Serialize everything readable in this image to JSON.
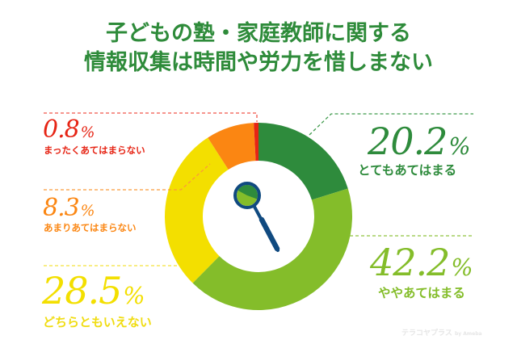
{
  "title": {
    "line1": "子どもの塾・家庭教師に関する",
    "line2": "情報収集は時間や労力を惜しまない"
  },
  "chart_data": {
    "type": "pie",
    "variant": "donut",
    "title": "子どもの塾・家庭教師に関する情報収集は時間や労力を惜しまない",
    "start_angle": "12 o'clock, clockwise",
    "categories": [
      "とてもあてはまる",
      "ややあてはまる",
      "どちらともいえない",
      "あまりあてはまらない",
      "まったくあてはまらない"
    ],
    "values": [
      20.2,
      42.2,
      28.5,
      8.3,
      0.8
    ],
    "unit": "%",
    "colors": [
      "#2e8b3c",
      "#84bd2a",
      "#f3df00",
      "#fb8612",
      "#e62414"
    ],
    "center_icon": "magnifying-glass"
  },
  "labels": {
    "very_true": {
      "value": "20.2",
      "unit": "%",
      "text": "とてもあてはまる",
      "color": "#2e8b3c"
    },
    "somewhat": {
      "value": "42.2",
      "unit": "%",
      "text": "ややあてはまる",
      "color": "#84bd2a"
    },
    "neutral": {
      "value": "28.5",
      "unit": "%",
      "text": "どちらともいえない",
      "color": "#f3df00"
    },
    "not_really": {
      "value": "8.3",
      "unit": "%",
      "text": "あまりあてはまらない",
      "color": "#fb8612"
    },
    "not_at_all": {
      "value": "0.8",
      "unit": "%",
      "text": "まったくあてはまらない",
      "color": "#e62414"
    }
  },
  "watermark": {
    "brand": "テラコヤプラス",
    "by": "by Ameba"
  },
  "icon_colors": {
    "magnifier": "#104a80"
  }
}
